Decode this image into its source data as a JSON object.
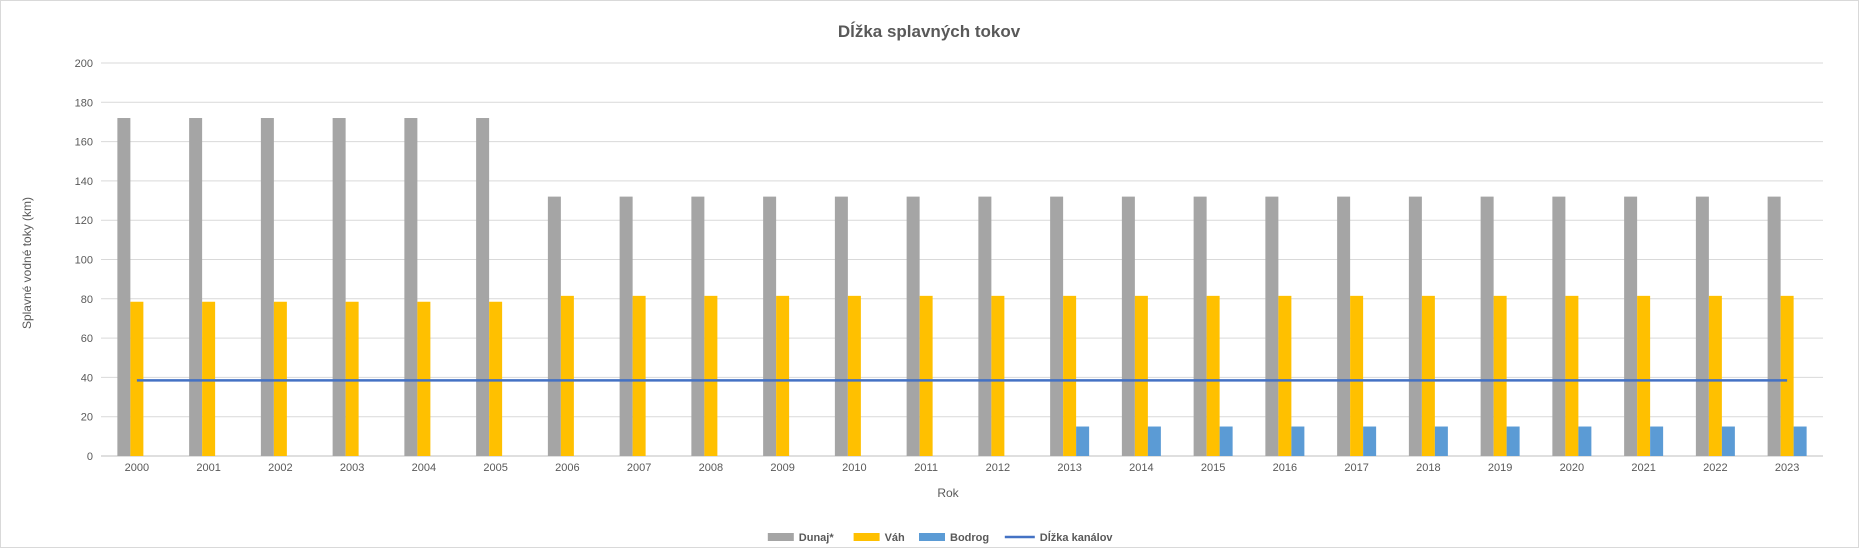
{
  "chart_data": {
    "type": "bar",
    "title": "Dĺžka splavných tokov",
    "xlabel": "Rok",
    "ylabel": "Splavné vodné toky (km)",
    "ylim": [
      0,
      200
    ],
    "yticks": [
      0,
      20,
      40,
      60,
      80,
      100,
      120,
      140,
      160,
      180,
      200
    ],
    "grid": true,
    "legend_position": "bottom",
    "categories": [
      "2000",
      "2001",
      "2002",
      "2003",
      "2004",
      "2005",
      "2006",
      "2007",
      "2008",
      "2009",
      "2010",
      "2011",
      "2012",
      "2013",
      "2014",
      "2015",
      "2016",
      "2017",
      "2018",
      "2019",
      "2020",
      "2021",
      "2022",
      "2023"
    ],
    "series": [
      {
        "name": "Dunaj*",
        "type": "bar",
        "color": "#a5a5a5",
        "values": [
          172,
          172,
          172,
          172,
          172,
          172,
          132,
          132,
          132,
          132,
          132,
          132,
          132,
          132,
          132,
          132,
          132,
          132,
          132,
          132,
          132,
          132,
          132,
          132
        ]
      },
      {
        "name": "Váh",
        "type": "bar",
        "color": "#ffc000",
        "values": [
          78.5,
          78.5,
          78.5,
          78.5,
          78.5,
          78.5,
          81.5,
          81.5,
          81.5,
          81.5,
          81.5,
          81.5,
          81.5,
          81.5,
          81.5,
          81.5,
          81.5,
          81.5,
          81.5,
          81.5,
          81.5,
          81.5,
          81.5,
          81.5
        ]
      },
      {
        "name": "Bodrog",
        "type": "bar",
        "color": "#5b9bd5",
        "values": [
          0,
          0,
          0,
          0,
          0,
          0,
          0,
          0,
          0,
          0,
          0,
          0,
          0,
          15,
          15,
          15,
          15,
          15,
          15,
          15,
          15,
          15,
          15,
          15
        ]
      },
      {
        "name": "Dĺžka kanálov",
        "type": "line",
        "color": "#4472c4",
        "values": [
          38.5,
          38.5,
          38.5,
          38.5,
          38.5,
          38.5,
          38.5,
          38.5,
          38.5,
          38.5,
          38.5,
          38.5,
          38.5,
          38.5,
          38.5,
          38.5,
          38.5,
          38.5,
          38.5,
          38.5,
          38.5,
          38.5,
          38.5,
          38.5
        ]
      }
    ]
  }
}
